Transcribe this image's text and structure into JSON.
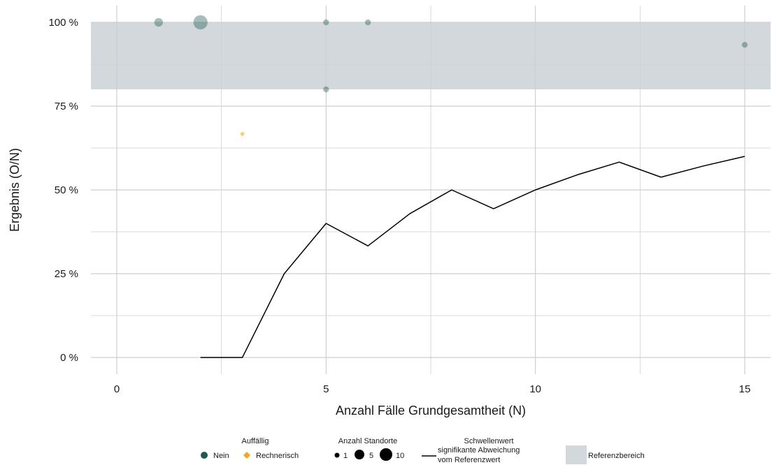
{
  "chart_data": {
    "type": "scatter",
    "xlabel": "Anzahl Fälle Grundgesamtheit (N)",
    "ylabel": "Ergebnis (O/N)",
    "xlim": [
      -0.8,
      15.65
    ],
    "ylim": [
      -0.05,
      1.04
    ],
    "x_ticks": [
      0,
      5,
      10,
      15
    ],
    "x_tick_labels": [
      "0",
      "5",
      "10",
      "15"
    ],
    "y_ticks": [
      0,
      0.25,
      0.5,
      0.75,
      1.0
    ],
    "y_tick_labels": [
      "0 %",
      "25 %",
      "50 %",
      "75 %",
      "100 %"
    ],
    "reference_range": [
      0.8,
      1.0
    ],
    "grid": true,
    "points": [
      {
        "x": 1,
        "y": 1.0,
        "group": "Nein",
        "count": 3
      },
      {
        "x": 2,
        "y": 1.0,
        "group": "Nein",
        "count": 7
      },
      {
        "x": 5,
        "y": 1.0,
        "group": "Nein",
        "count": 1
      },
      {
        "x": 6,
        "y": 1.0,
        "group": "Nein",
        "count": 1
      },
      {
        "x": 5,
        "y": 0.8,
        "group": "Nein",
        "count": 1
      },
      {
        "x": 15,
        "y": 0.933,
        "group": "Nein",
        "count": 1
      },
      {
        "x": 3,
        "y": 0.667,
        "group": "Rechnerisch",
        "count": 1
      }
    ],
    "threshold_line": {
      "x": [
        2,
        3,
        4,
        5,
        6,
        7,
        8,
        9,
        10,
        11,
        12,
        13,
        14,
        15
      ],
      "y": [
        0,
        0,
        0.25,
        0.4,
        0.333,
        0.429,
        0.5,
        0.444,
        0.5,
        0.545,
        0.583,
        0.538,
        0.571,
        0.6
      ]
    },
    "colors": {
      "nein": "#1f5a55",
      "rechnerisch": "#f2a81d",
      "reference": "#d3d8dc",
      "grid": "#cfcfcf",
      "line": "#000000"
    },
    "legend": {
      "placement": "bottom",
      "auffaellig_title": "Auffällig",
      "auffaellig_items": [
        "Nein",
        "Rechnerisch"
      ],
      "standorte_title": "Anzahl Standorte",
      "standorte_items": [
        "1",
        "5",
        "10"
      ],
      "standorte_values": [
        1,
        5,
        10
      ],
      "schwellenwert_title": "Schwellenwert",
      "schwellenwert_text": [
        "signifikante Abweichung",
        "vom Referenzwert"
      ],
      "referenz_label": "Referenzbereich"
    }
  }
}
